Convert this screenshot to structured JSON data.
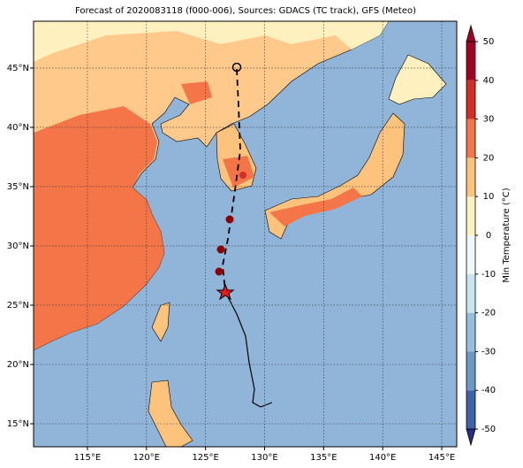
{
  "title": "Forecast of 2020083118 (f000-006), Sources: GDACS (TC track), GFS (Meteo)",
  "map": {
    "lonlim": [
      110.44,
      146.27
    ],
    "latlim": [
      13.06,
      48.95
    ],
    "lon_ticks": [
      {
        "value": 115,
        "label": "115°E"
      },
      {
        "value": 120,
        "label": "120°E"
      },
      {
        "value": 125,
        "label": "125°E"
      },
      {
        "value": 130,
        "label": "130°E"
      },
      {
        "value": 135,
        "label": "135°E"
      },
      {
        "value": 140,
        "label": "140°E"
      },
      {
        "value": 145,
        "label": "145°E"
      }
    ],
    "lat_ticks": [
      {
        "value": 15,
        "label": "15°N"
      },
      {
        "value": 20,
        "label": "20°N"
      },
      {
        "value": 25,
        "label": "25°N"
      },
      {
        "value": 30,
        "label": "30°N"
      },
      {
        "value": 35,
        "label": "35°N"
      },
      {
        "value": 40,
        "label": "40°N"
      },
      {
        "value": 45,
        "label": "45°N"
      }
    ]
  },
  "colorbar": {
    "label": "Min Temperature (°C)",
    "lim": [
      -50,
      50
    ],
    "ticks": [
      -50,
      -40,
      -30,
      -20,
      -10,
      0,
      10,
      20,
      30,
      40,
      50
    ],
    "colors": [
      "#2b2c8c",
      "#3f62aa",
      "#6b97c9",
      "#97bedd",
      "#c9e4ef",
      "#eef8f6",
      "#fff0c0",
      "#fdc27c",
      "#f37548",
      "#d32f27",
      "#a50026"
    ]
  }
}
